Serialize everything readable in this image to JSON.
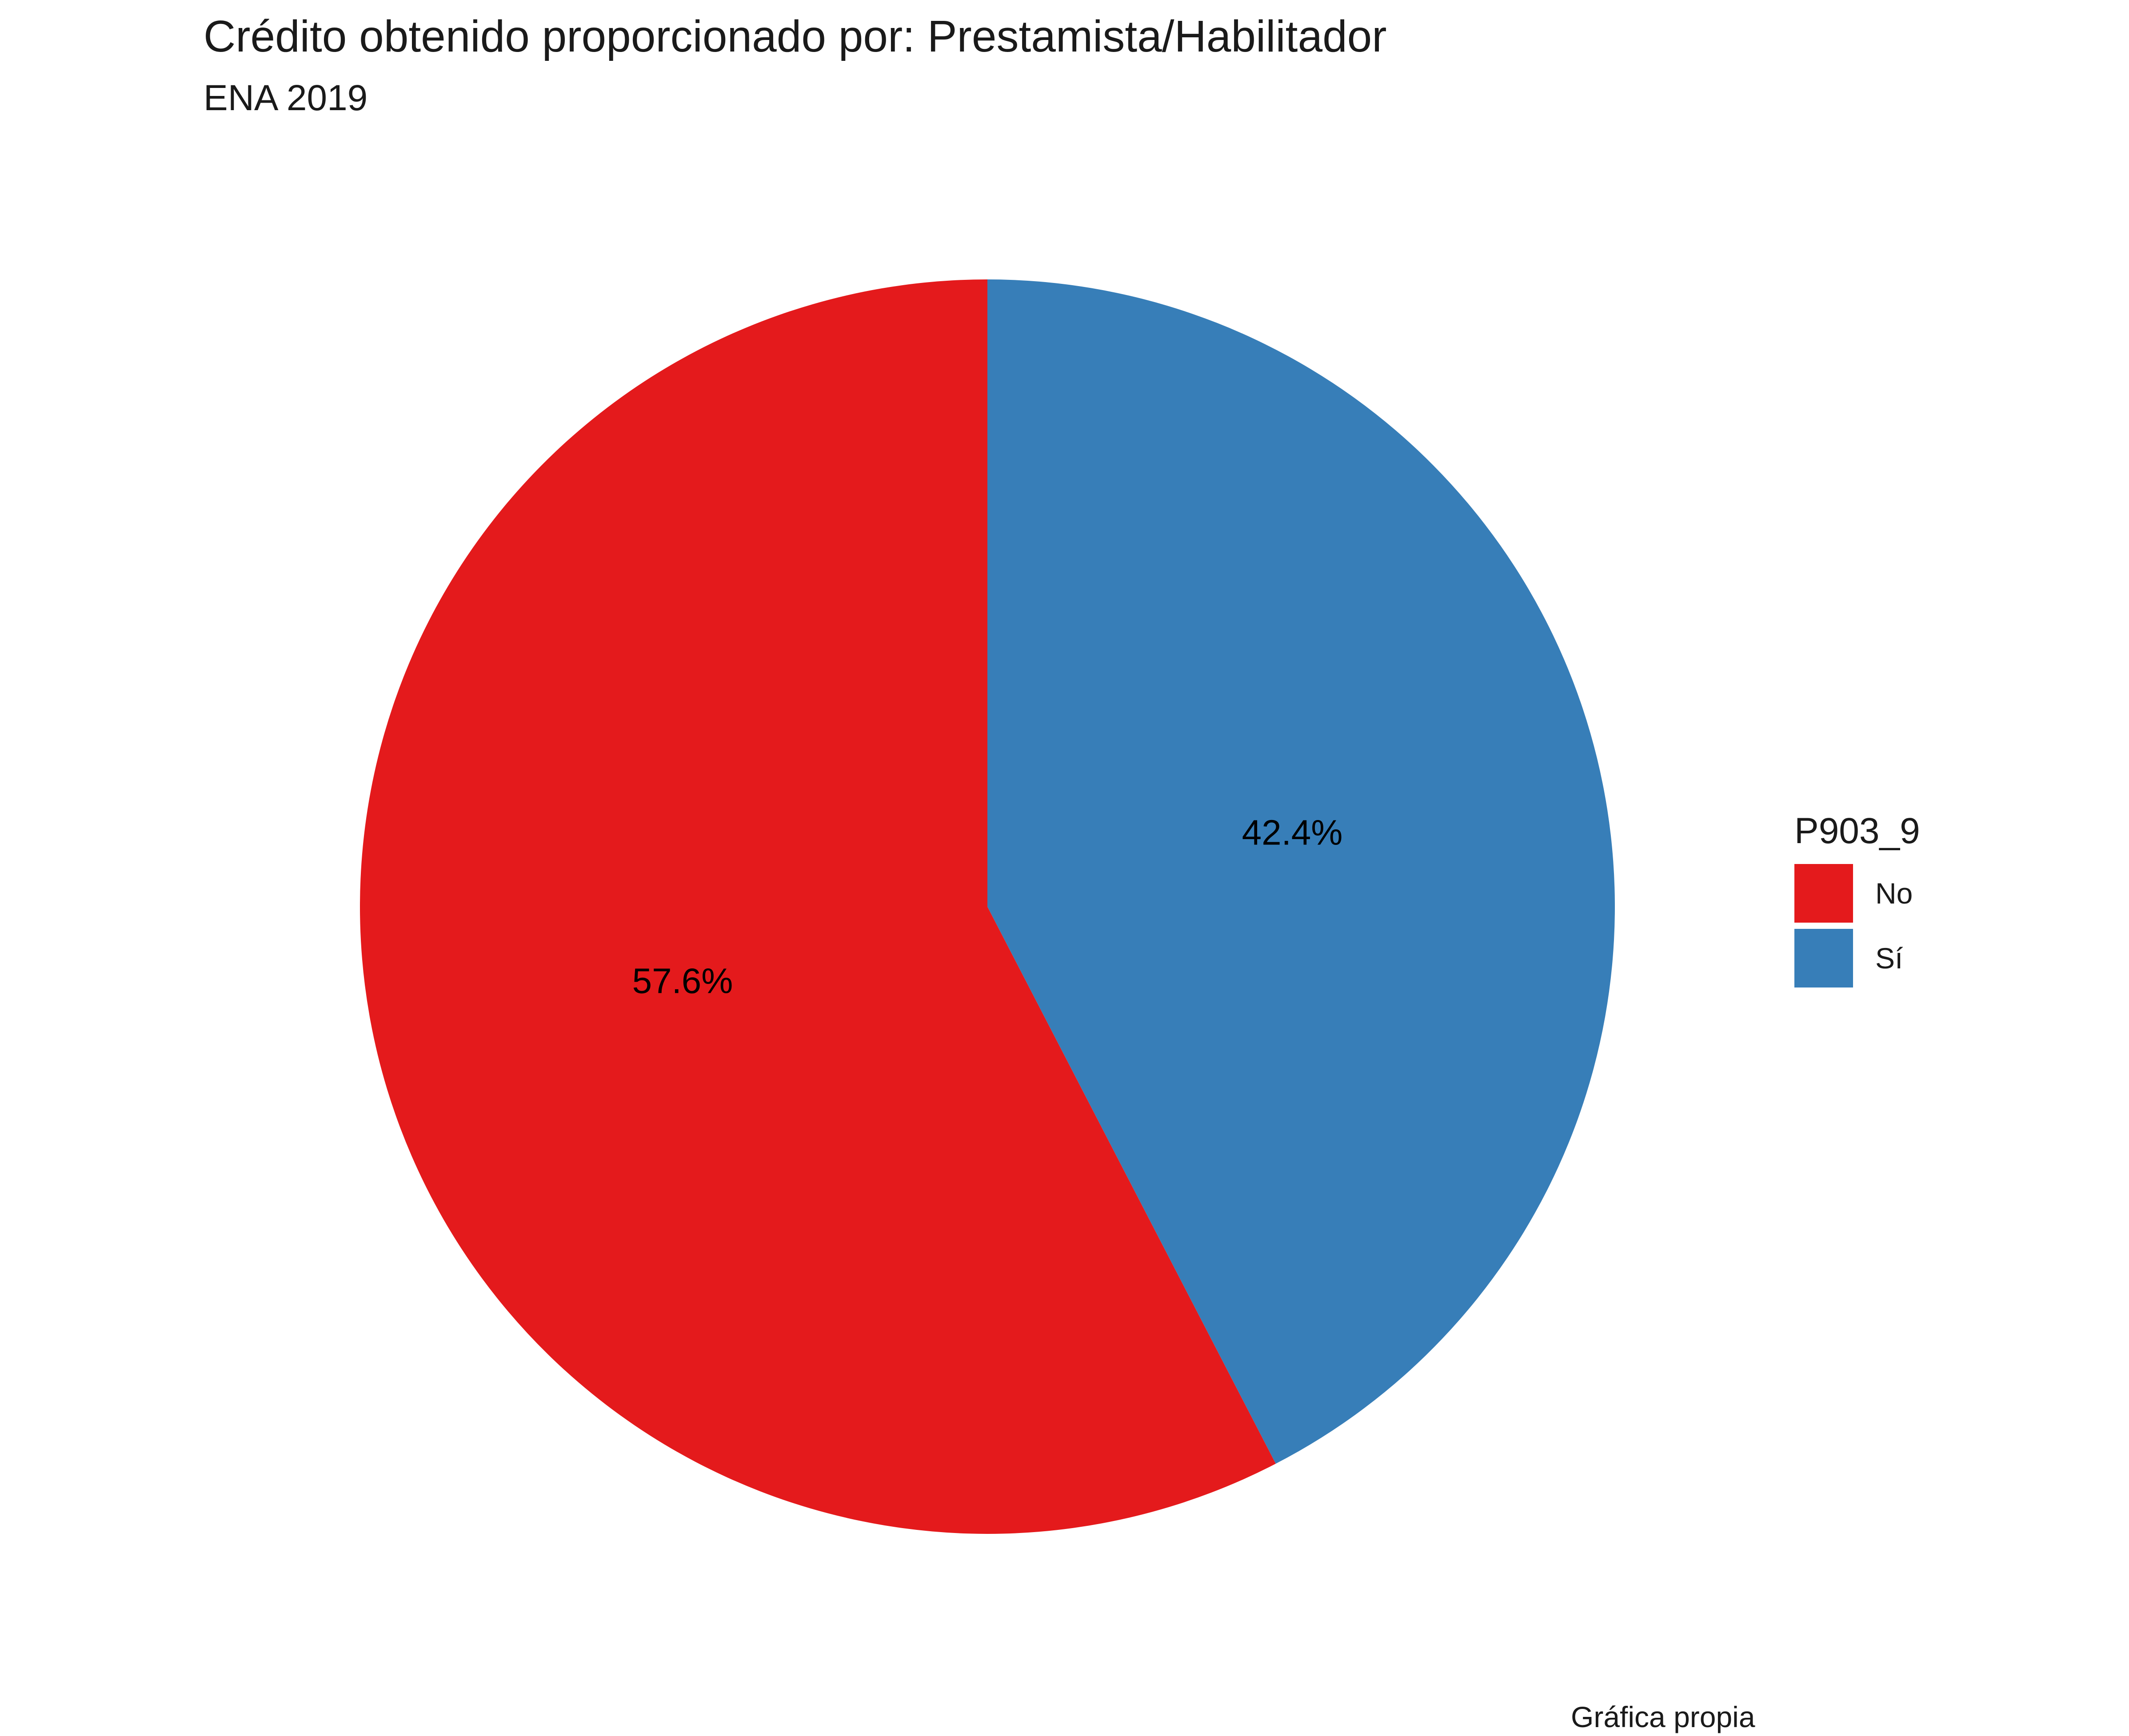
{
  "chart_data": {
    "type": "pie",
    "title": "Crédito obtenido proporcionado por: Prestamista/Habilitador",
    "subtitle": "ENA 2019",
    "caption": "Gráfica propia",
    "legend_title": "P903_9",
    "legend_position": "right",
    "slices": [
      {
        "category": "No",
        "value": 57.6,
        "label": "57.6%",
        "color": "#E41A1C"
      },
      {
        "category": "Sí",
        "value": 42.4,
        "label": "42.4%",
        "color": "#377EB8"
      }
    ]
  }
}
